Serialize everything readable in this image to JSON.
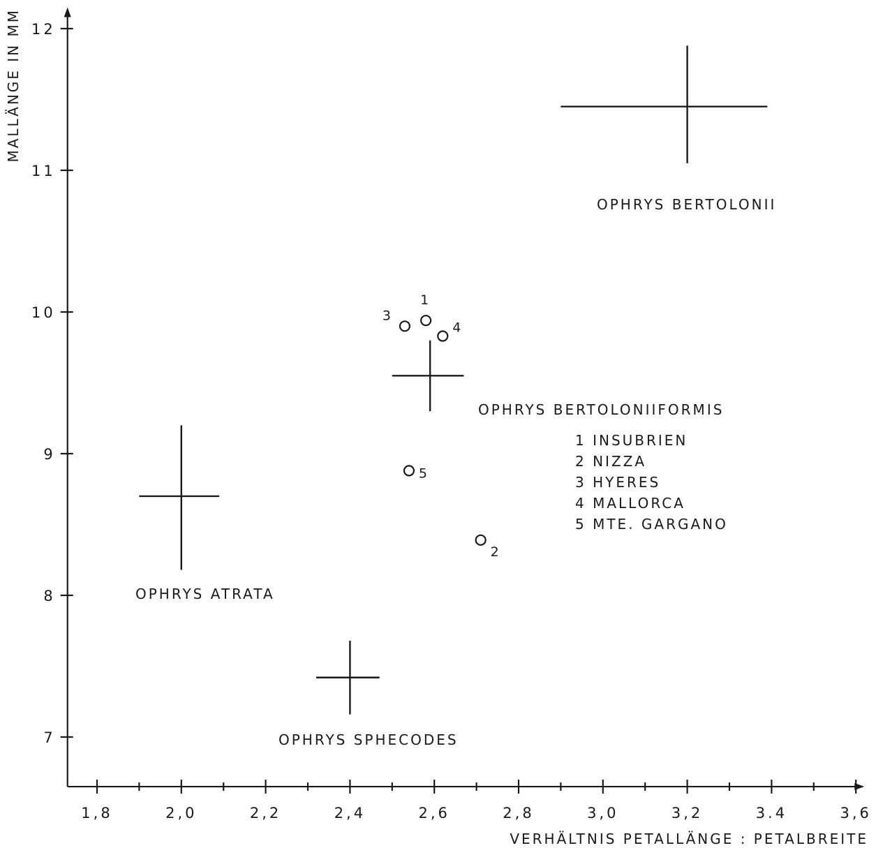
{
  "chart_data": {
    "type": "scatter",
    "xlabel": "VERHÄLTNIS PETALLÄNGE : PETALBREITE",
    "ylabel": "MALLÄNGE IN MM",
    "xlim": [
      1.73,
      3.62
    ],
    "ylim": [
      6.65,
      12.15
    ],
    "x_ticks": [
      {
        "value": 1.8,
        "label": "1,8"
      },
      {
        "value": 2.0,
        "label": "2,0"
      },
      {
        "value": 2.2,
        "label": "2,2"
      },
      {
        "value": 2.4,
        "label": "2,4"
      },
      {
        "value": 2.6,
        "label": "2,6"
      },
      {
        "value": 2.8,
        "label": "2,8"
      },
      {
        "value": 3.0,
        "label": "3,0"
      },
      {
        "value": 3.2,
        "label": "3,2"
      },
      {
        "value": 3.4,
        "label": "3.4"
      },
      {
        "value": 3.6,
        "label": "3,6"
      }
    ],
    "x_minor_ticks": [
      1.9,
      2.1,
      2.3,
      2.5,
      2.7,
      2.9,
      3.1,
      3.3,
      3.5
    ],
    "y_ticks": [
      {
        "value": 7,
        "label": "7"
      },
      {
        "value": 8,
        "label": "8"
      },
      {
        "value": 9,
        "label": "9"
      },
      {
        "value": 10,
        "label": "10"
      },
      {
        "value": 11,
        "label": "11"
      },
      {
        "value": 12,
        "label": "12"
      }
    ],
    "grid": false,
    "species": [
      {
        "name": "OPHRYS BERTOLONII",
        "x": 3.2,
        "y": 11.45,
        "x_range": [
          2.9,
          3.39
        ],
        "y_range": [
          11.05,
          11.88
        ]
      },
      {
        "name": "OPHRYS BERTOLONIIFORMIS",
        "x": 2.59,
        "y": 9.55,
        "x_range": [
          2.5,
          2.67
        ],
        "y_range": [
          9.3,
          9.8
        ]
      },
      {
        "name": "OPHRYS ATRATA",
        "x": 2.0,
        "y": 8.7,
        "x_range": [
          1.9,
          2.09
        ],
        "y_range": [
          8.18,
          9.2
        ]
      },
      {
        "name": "OPHRYS SPHECODES",
        "x": 2.4,
        "y": 7.42,
        "x_range": [
          2.32,
          2.47
        ],
        "y_range": [
          7.16,
          7.68
        ]
      }
    ],
    "points": [
      {
        "label": "1",
        "x": 2.58,
        "y": 9.94
      },
      {
        "label": "2",
        "x": 2.71,
        "y": 8.39
      },
      {
        "label": "3",
        "x": 2.53,
        "y": 9.9
      },
      {
        "label": "4",
        "x": 2.62,
        "y": 9.83
      },
      {
        "label": "5",
        "x": 2.54,
        "y": 8.88
      }
    ],
    "legend": {
      "placement": "center-right",
      "entries": [
        "1 INSUBRIEN",
        "2 NIZZA",
        "3 HYERES",
        "4 MALLORCA",
        "5 MTE. GARGANO"
      ]
    }
  }
}
